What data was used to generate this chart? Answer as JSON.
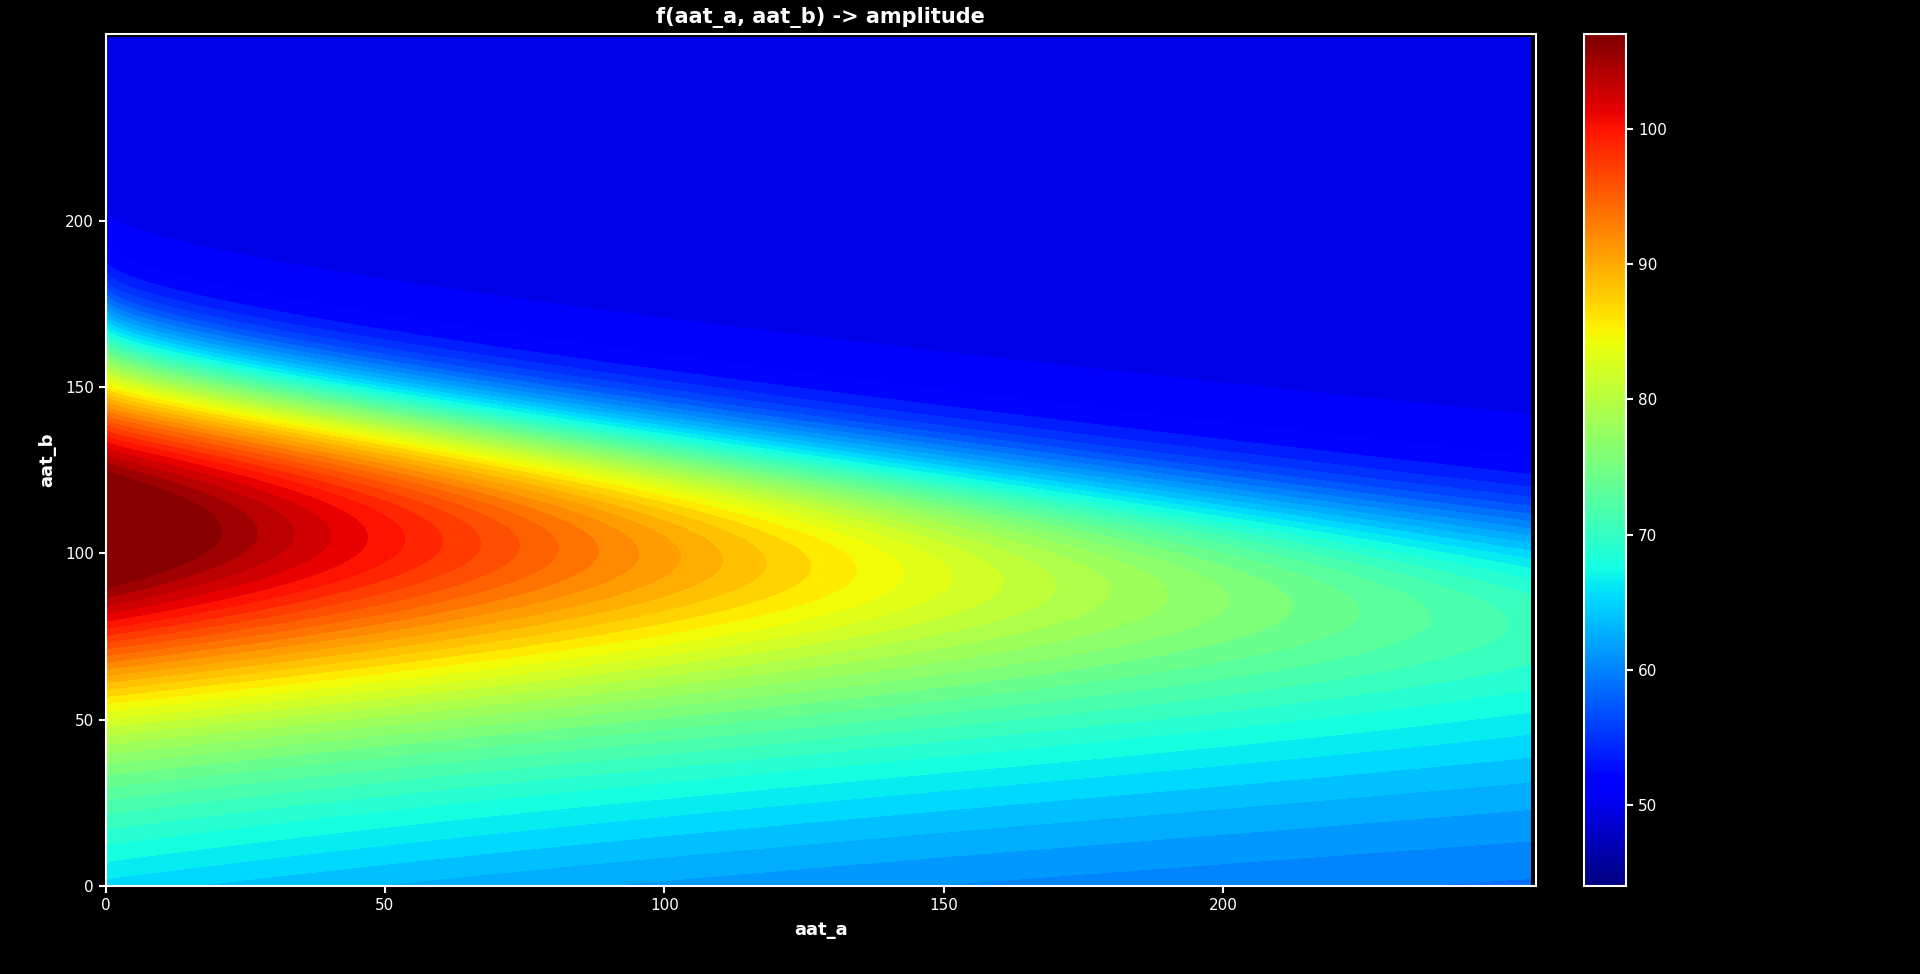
{
  "title": "f(aat_a, aat_b) -> amplitude",
  "xlabel": "aat_a",
  "ylabel": "aat_b",
  "xmin": 0,
  "xmax": 256,
  "ymin": 0,
  "ymax": 256,
  "vmin": 44,
  "vmax": 107,
  "colorbar_ticks": [
    50,
    60,
    70,
    80,
    90,
    100
  ],
  "background_color": "#000000",
  "text_color": "#ffffff",
  "title_fontsize": 15,
  "label_fontsize": 13,
  "tick_fontsize": 11,
  "colorbar_fontsize": 11,
  "n_contour_levels": 50,
  "grid_size": 256
}
